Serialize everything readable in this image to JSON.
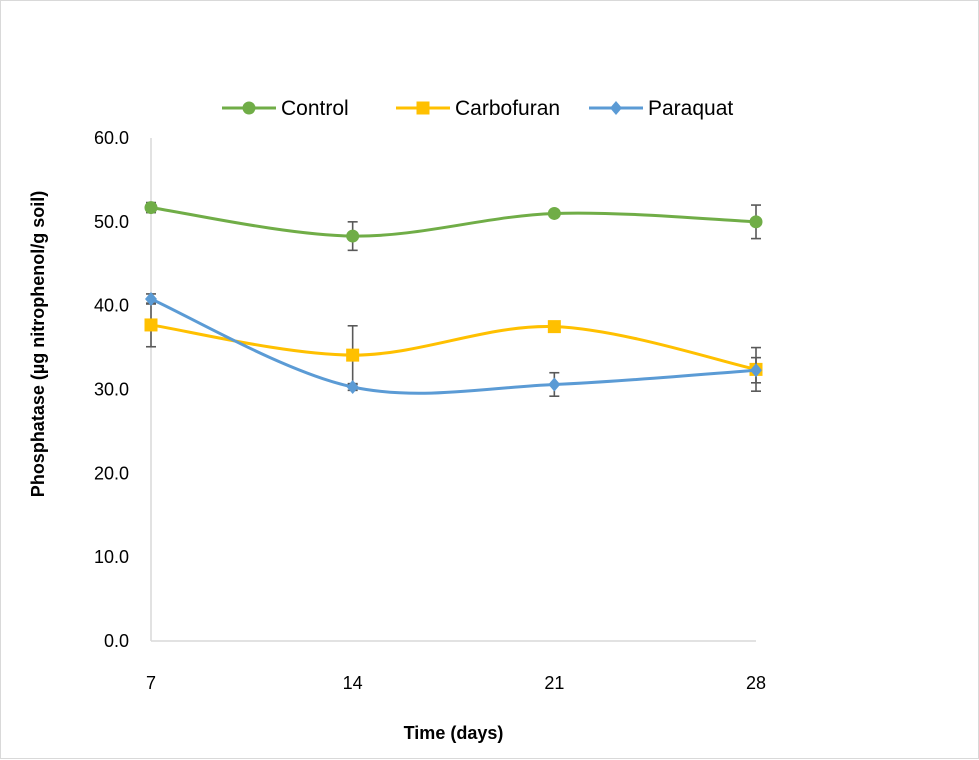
{
  "chart_data": {
    "type": "line",
    "title": "",
    "xlabel": "Time (days)",
    "ylabel": "Phosphatase  (µg nitrophenol/g soil)",
    "x": [
      7,
      14,
      21,
      28
    ],
    "x_tick_labels": [
      "7",
      "14",
      "21",
      "28"
    ],
    "y_tick_labels": [
      "0.0",
      "10.0",
      "20.0",
      "30.0",
      "40.0",
      "50.0",
      "60.0"
    ],
    "ylim": [
      0,
      60
    ],
    "grid": false,
    "legend_position": "top",
    "smoothed_lines": true,
    "series": [
      {
        "name": "Control",
        "color": "#70AD47",
        "marker": "circle",
        "values": [
          51.7,
          48.3,
          51.0,
          50.0
        ],
        "error": [
          0.6,
          1.7,
          0.3,
          2.0
        ]
      },
      {
        "name": "Carbofuran",
        "color": "#FFC000",
        "marker": "square",
        "values": [
          37.7,
          34.1,
          37.5,
          32.4
        ],
        "error": [
          2.6,
          3.5,
          0.3,
          2.6
        ]
      },
      {
        "name": "Paraquat",
        "color": "#5B9BD5",
        "marker": "diamond",
        "values": [
          40.8,
          30.3,
          30.6,
          32.3
        ],
        "error": [
          0.6,
          0.4,
          1.4,
          1.5
        ]
      }
    ]
  }
}
